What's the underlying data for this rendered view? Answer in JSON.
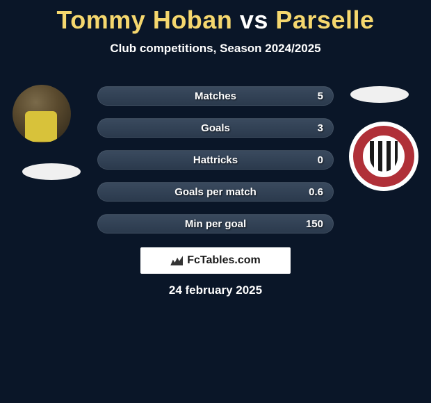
{
  "title": {
    "player1": "Tommy Hoban",
    "vs": "vs",
    "player2": "Parselle",
    "player_color": "#f5d76e",
    "vs_color": "#ffffff",
    "fontsize": 36
  },
  "subtitle": "Club competitions, Season 2024/2025",
  "bars": {
    "background_gradient": [
      "#3a4a5e",
      "#2b3a4d"
    ],
    "label_color": "#ffffff",
    "items": [
      {
        "label": "Matches",
        "value": "5"
      },
      {
        "label": "Goals",
        "value": "3"
      },
      {
        "label": "Hattricks",
        "value": "0"
      },
      {
        "label": "Goals per match",
        "value": "0.6"
      },
      {
        "label": "Min per goal",
        "value": "150"
      }
    ]
  },
  "footer": {
    "site": "FcTables.com",
    "box_bg": "#ffffff",
    "text_color": "#1a1a1a"
  },
  "date": "24 february 2025",
  "page_bg": "#0a1628",
  "left_player_badge_colors": {
    "shirt": "#d8c23a"
  },
  "right_club_badge_colors": {
    "ring": "#b03038",
    "stripe_dark": "#1a1a1a",
    "stripe_light": "#ffffff"
  }
}
